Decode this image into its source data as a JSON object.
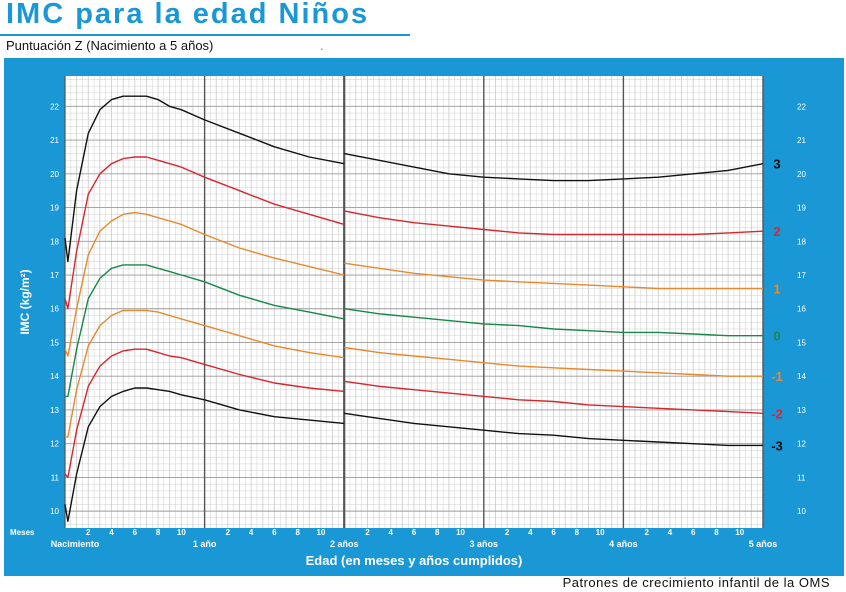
{
  "header": {
    "title": "IMC para la edad Niños",
    "subtitle": "Puntuación Z (Nacimiento a 5 años)",
    "subtitle_mark": "."
  },
  "footer": {
    "source": "Patrones de crecimiento infantil de la OMS"
  },
  "colors": {
    "panel": "#1a97d5",
    "plot_bg": "#ffffff",
    "grid_minor": "#cfcfcf",
    "grid_major": "#555555",
    "z3": "#111111",
    "z2": "#d8262e",
    "z1": "#e8892e",
    "z0": "#17884a"
  },
  "chart_data": {
    "type": "line",
    "title": "IMC para la edad Niños",
    "subtitle": "Puntuación Z (Nacimiento a 5 años)",
    "xlabel": "Edad (en meses y años cumplidos)",
    "ylabel": "IMC (kg/m²)",
    "x_unit_label": "Meses",
    "xlim": [
      0,
      60
    ],
    "ylim": [
      9.5,
      22.9
    ],
    "y_ticks": [
      10,
      11,
      12,
      13,
      14,
      15,
      16,
      17,
      18,
      19,
      20,
      21,
      22
    ],
    "x_minor_ticks": [
      2,
      4,
      6,
      8,
      10,
      14,
      16,
      18,
      20,
      22,
      26,
      28,
      30,
      32,
      34,
      38,
      40,
      42,
      44,
      46,
      50,
      52,
      54,
      56,
      58
    ],
    "x_minor_tick_labels": [
      "2",
      "4",
      "6",
      "8",
      "10",
      "2",
      "4",
      "6",
      "8",
      "10",
      "2",
      "4",
      "6",
      "8",
      "10",
      "2",
      "4",
      "6",
      "8",
      "10",
      "2",
      "4",
      "6",
      "8",
      "10"
    ],
    "x_major_ticks": [
      0,
      12,
      24,
      36,
      48,
      60
    ],
    "x_major_labels": [
      "Nacimiento",
      "1 año",
      "2 años",
      "3 años",
      "4 años",
      "5 años"
    ],
    "grid": true,
    "segment_break_month": 24,
    "series": [
      {
        "name": "3",
        "color": "#111111",
        "x": [
          0,
          0.25,
          1,
          2,
          3,
          4,
          5,
          6,
          7,
          8,
          9,
          10,
          12,
          15,
          18,
          21,
          24,
          24,
          27,
          30,
          33,
          36,
          39,
          42,
          45,
          48,
          51,
          54,
          57,
          60
        ],
        "y": [
          18.1,
          17.4,
          19.5,
          21.2,
          21.9,
          22.2,
          22.3,
          22.3,
          22.3,
          22.2,
          22.0,
          21.9,
          21.6,
          21.2,
          20.8,
          20.5,
          20.3,
          20.6,
          20.4,
          20.2,
          20.0,
          19.9,
          19.85,
          19.8,
          19.8,
          19.85,
          19.9,
          20.0,
          20.1,
          20.3
        ]
      },
      {
        "name": "2",
        "color": "#d8262e",
        "x": [
          0,
          0.25,
          1,
          2,
          3,
          4,
          5,
          6,
          7,
          8,
          9,
          10,
          12,
          15,
          18,
          21,
          24,
          24,
          27,
          30,
          33,
          36,
          39,
          42,
          45,
          48,
          51,
          54,
          57,
          60
        ],
        "y": [
          16.3,
          16.0,
          17.7,
          19.4,
          20.0,
          20.3,
          20.45,
          20.5,
          20.5,
          20.4,
          20.3,
          20.2,
          19.9,
          19.5,
          19.1,
          18.8,
          18.5,
          18.9,
          18.7,
          18.55,
          18.45,
          18.35,
          18.25,
          18.2,
          18.2,
          18.2,
          18.2,
          18.2,
          18.25,
          18.3
        ]
      },
      {
        "name": "1",
        "color": "#e8892e",
        "x": [
          0,
          0.25,
          1,
          2,
          3,
          4,
          5,
          6,
          7,
          8,
          9,
          10,
          12,
          15,
          18,
          21,
          24,
          24,
          27,
          30,
          33,
          36,
          39,
          42,
          45,
          48,
          51,
          54,
          57,
          60
        ],
        "y": [
          14.8,
          14.6,
          16.0,
          17.6,
          18.3,
          18.6,
          18.8,
          18.85,
          18.8,
          18.7,
          18.6,
          18.5,
          18.2,
          17.8,
          17.5,
          17.25,
          17.0,
          17.35,
          17.2,
          17.05,
          16.95,
          16.85,
          16.8,
          16.75,
          16.7,
          16.65,
          16.6,
          16.6,
          16.6,
          16.6
        ]
      },
      {
        "name": "0",
        "color": "#17884a",
        "x": [
          0,
          0.25,
          1,
          2,
          3,
          4,
          5,
          6,
          7,
          8,
          9,
          10,
          12,
          15,
          18,
          21,
          24,
          24,
          27,
          30,
          33,
          36,
          39,
          42,
          45,
          48,
          51,
          54,
          57,
          60
        ],
        "y": [
          13.4,
          13.4,
          14.8,
          16.3,
          16.9,
          17.2,
          17.3,
          17.3,
          17.3,
          17.2,
          17.1,
          17.0,
          16.8,
          16.4,
          16.1,
          15.9,
          15.7,
          16.0,
          15.85,
          15.75,
          15.65,
          15.55,
          15.5,
          15.4,
          15.35,
          15.3,
          15.3,
          15.25,
          15.2,
          15.2
        ]
      },
      {
        "name": "-1",
        "color": "#e8892e",
        "x": [
          0,
          0.25,
          1,
          2,
          3,
          4,
          5,
          6,
          7,
          8,
          9,
          10,
          12,
          15,
          18,
          21,
          24,
          24,
          27,
          30,
          33,
          36,
          39,
          42,
          45,
          48,
          51,
          54,
          57,
          60
        ],
        "y": [
          12.2,
          12.2,
          13.6,
          14.9,
          15.5,
          15.8,
          15.95,
          15.95,
          15.95,
          15.9,
          15.8,
          15.7,
          15.5,
          15.2,
          14.9,
          14.7,
          14.55,
          14.85,
          14.7,
          14.6,
          14.5,
          14.4,
          14.3,
          14.25,
          14.2,
          14.15,
          14.1,
          14.05,
          14.0,
          14.0
        ]
      },
      {
        "name": "-2",
        "color": "#d8262e",
        "x": [
          0,
          0.25,
          1,
          2,
          3,
          4,
          5,
          6,
          7,
          8,
          9,
          10,
          12,
          15,
          18,
          21,
          24,
          24,
          27,
          30,
          33,
          36,
          39,
          42,
          45,
          48,
          51,
          54,
          57,
          60
        ],
        "y": [
          11.1,
          11.0,
          12.4,
          13.7,
          14.3,
          14.6,
          14.75,
          14.8,
          14.8,
          14.7,
          14.6,
          14.55,
          14.35,
          14.05,
          13.8,
          13.65,
          13.55,
          13.85,
          13.7,
          13.6,
          13.5,
          13.4,
          13.3,
          13.25,
          13.15,
          13.1,
          13.05,
          13.0,
          12.95,
          12.9
        ]
      },
      {
        "name": "-3",
        "color": "#111111",
        "x": [
          0,
          0.25,
          1,
          2,
          3,
          4,
          5,
          6,
          7,
          8,
          9,
          10,
          12,
          15,
          18,
          21,
          24,
          24,
          27,
          30,
          33,
          36,
          39,
          42,
          45,
          48,
          51,
          54,
          57,
          60
        ],
        "y": [
          10.2,
          9.7,
          11.1,
          12.5,
          13.1,
          13.4,
          13.55,
          13.65,
          13.65,
          13.6,
          13.55,
          13.45,
          13.3,
          13.0,
          12.8,
          12.7,
          12.6,
          12.9,
          12.75,
          12.6,
          12.5,
          12.4,
          12.3,
          12.25,
          12.15,
          12.1,
          12.05,
          12.0,
          11.95,
          11.95
        ]
      }
    ]
  }
}
